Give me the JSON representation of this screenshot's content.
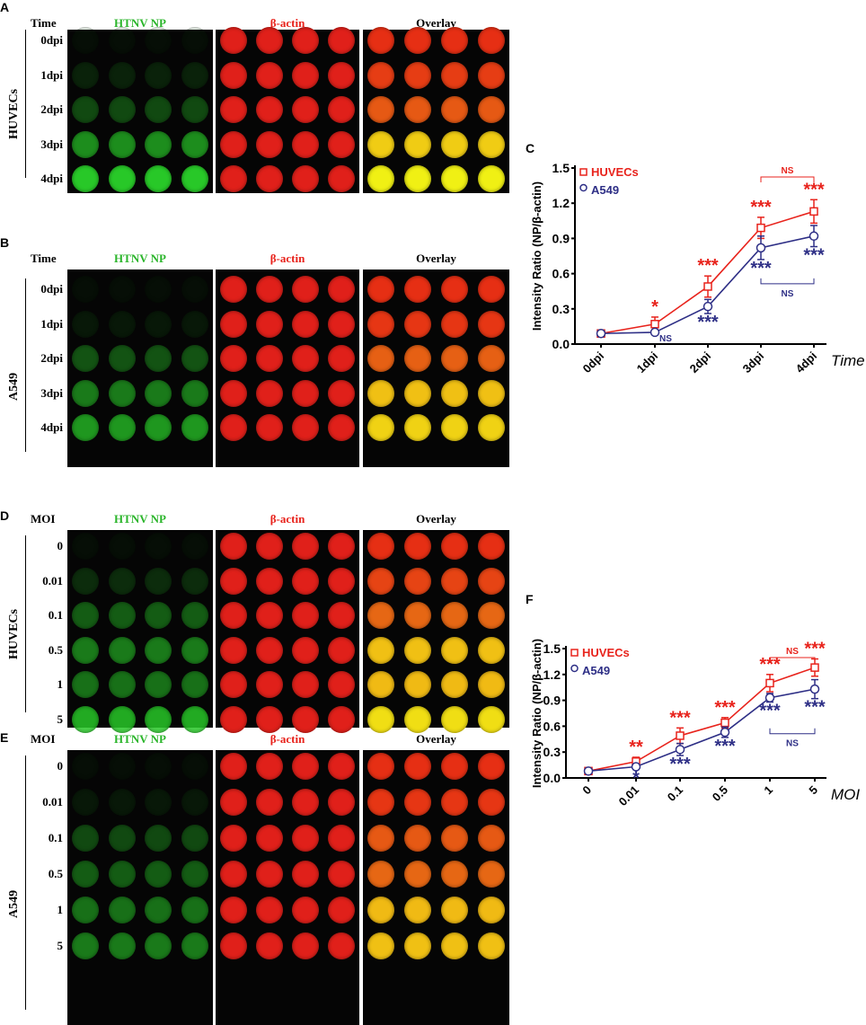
{
  "panels": [
    {
      "letter": "A",
      "corner": "Time",
      "cell": "HUVECs",
      "headers": [
        "HTNV NP",
        "β-actin",
        "Overlay"
      ],
      "rows": [
        "0dpi",
        "1dpi",
        "2dpi",
        "3dpi",
        "4dpi"
      ]
    },
    {
      "letter": "B",
      "corner": "Time",
      "cell": "A549",
      "headers": [
        "HTNV NP",
        "β-actin",
        "Overlay"
      ],
      "rows": [
        "0dpi",
        "1dpi",
        "2dpi",
        "3dpi",
        "4dpi"
      ]
    },
    {
      "letter": "D",
      "corner": "MOI",
      "cell": "HUVECs",
      "headers": [
        "HTNV NP",
        "β-actin",
        "Overlay"
      ],
      "rows": [
        "0",
        "0.01",
        "0.1",
        "0.5",
        "1",
        "5"
      ]
    },
    {
      "letter": "E",
      "corner": "MOI",
      "cell": "A549",
      "headers": [
        "HTNV NP",
        "β-actin",
        "Overlay"
      ],
      "rows": [
        "0",
        "0.01",
        "0.1",
        "0.5",
        "1",
        "5"
      ]
    }
  ],
  "colors": {
    "green": "#22b022",
    "red": "#e8231c",
    "huvec": "#e8231c",
    "a549": "#2e2f86"
  },
  "chart_data": [
    {
      "letter": "C",
      "type": "line",
      "ylabel": "Intensity Ratio (NP/β-actin)",
      "xlabel": "Time",
      "categories": [
        "0dpi",
        "1dpi",
        "2dpi",
        "3dpi",
        "4dpi"
      ],
      "ylim": [
        0,
        1.5
      ],
      "yticks": [
        "0.0",
        "0.3",
        "0.6",
        "0.9",
        "1.2",
        "1.5"
      ],
      "legend": "top-left",
      "series": [
        {
          "name": "HUVECs",
          "values": [
            0.09,
            0.17,
            0.49,
            0.99,
            1.13
          ],
          "errors": [
            0.01,
            0.06,
            0.09,
            0.09,
            0.1
          ],
          "marks": [
            "",
            "*",
            "***",
            "***",
            "***"
          ]
        },
        {
          "name": "A549",
          "values": [
            0.09,
            0.1,
            0.32,
            0.82,
            0.92
          ],
          "errors": [
            0.01,
            0.01,
            0.06,
            0.1,
            0.09
          ],
          "marks": [
            "",
            "NS",
            "***",
            "***",
            "***"
          ]
        }
      ],
      "brackets": [
        {
          "series": "HUVECs",
          "from": "3dpi",
          "to": "4dpi",
          "label": "NS"
        },
        {
          "series": "A549",
          "from": "3dpi",
          "to": "4dpi",
          "label": "NS"
        }
      ]
    },
    {
      "letter": "F",
      "type": "line",
      "ylabel": "Intensity Ratio (NP/β-actin)",
      "xlabel": "MOI",
      "categories": [
        "0",
        "0.01",
        "0.1",
        "0.5",
        "1",
        "5"
      ],
      "ylim": [
        0,
        1.5
      ],
      "yticks": [
        "0.0",
        "0.3",
        "0.6",
        "0.9",
        "1.2",
        "1.5"
      ],
      "legend": "top-left",
      "series": [
        {
          "name": "HUVECs",
          "values": [
            0.08,
            0.19,
            0.49,
            0.64,
            1.1,
            1.28
          ],
          "errors": [
            0.01,
            0.05,
            0.09,
            0.06,
            0.1,
            0.1
          ],
          "marks": [
            "",
            "**",
            "***",
            "***",
            "***",
            "***"
          ]
        },
        {
          "name": "A549",
          "values": [
            0.08,
            0.13,
            0.33,
            0.53,
            0.93,
            1.03
          ],
          "errors": [
            0.01,
            0.03,
            0.07,
            0.06,
            0.05,
            0.11
          ],
          "marks": [
            "",
            "*",
            "***",
            "***",
            "***",
            "***"
          ]
        }
      ],
      "brackets": [
        {
          "series": "HUVECs",
          "from": "1",
          "to": "5",
          "label": "NS"
        },
        {
          "series": "A549",
          "from": "1",
          "to": "5",
          "label": "NS"
        }
      ]
    }
  ]
}
